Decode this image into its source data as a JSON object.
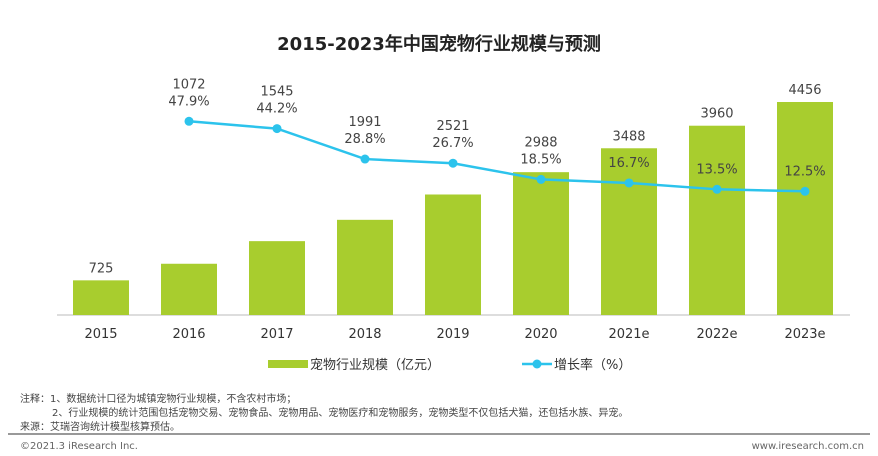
{
  "chart_data": {
    "type": "bar",
    "title": "2015-2023年中国宠物行业规模与预测",
    "categories": [
      "2015",
      "2016",
      "2017",
      "2018",
      "2019",
      "2020",
      "2021e",
      "2022e",
      "2023e"
    ],
    "series": [
      {
        "name": "宠物行业规模（亿元）",
        "type": "bar",
        "color": "#a8cd2e",
        "values": [
          725,
          1072,
          1545,
          1991,
          2521,
          2988,
          3488,
          3960,
          4456
        ]
      },
      {
        "name": "增长率（%）",
        "type": "line",
        "color": "#2cc3ec",
        "values": [
          null,
          47.9,
          44.2,
          28.8,
          26.7,
          18.5,
          16.7,
          13.5,
          12.5
        ]
      }
    ],
    "grid": false,
    "legend": "bottom"
  },
  "notes": [
    "注释：1、数据统计口径为城镇宠物行业规模，不含农村市场；",
    "2、行业规模的统计范围包括宠物交易、宠物食品、宠物用品、宠物医疗和宠物服务，宠物类型不仅包括犬猫，还包括水族、异宠。",
    "来源：艾瑞咨询统计模型核算预估。"
  ],
  "footer": {
    "left": "©2021.3 iResearch Inc.",
    "right": "www.iresearch.com.cn"
  }
}
